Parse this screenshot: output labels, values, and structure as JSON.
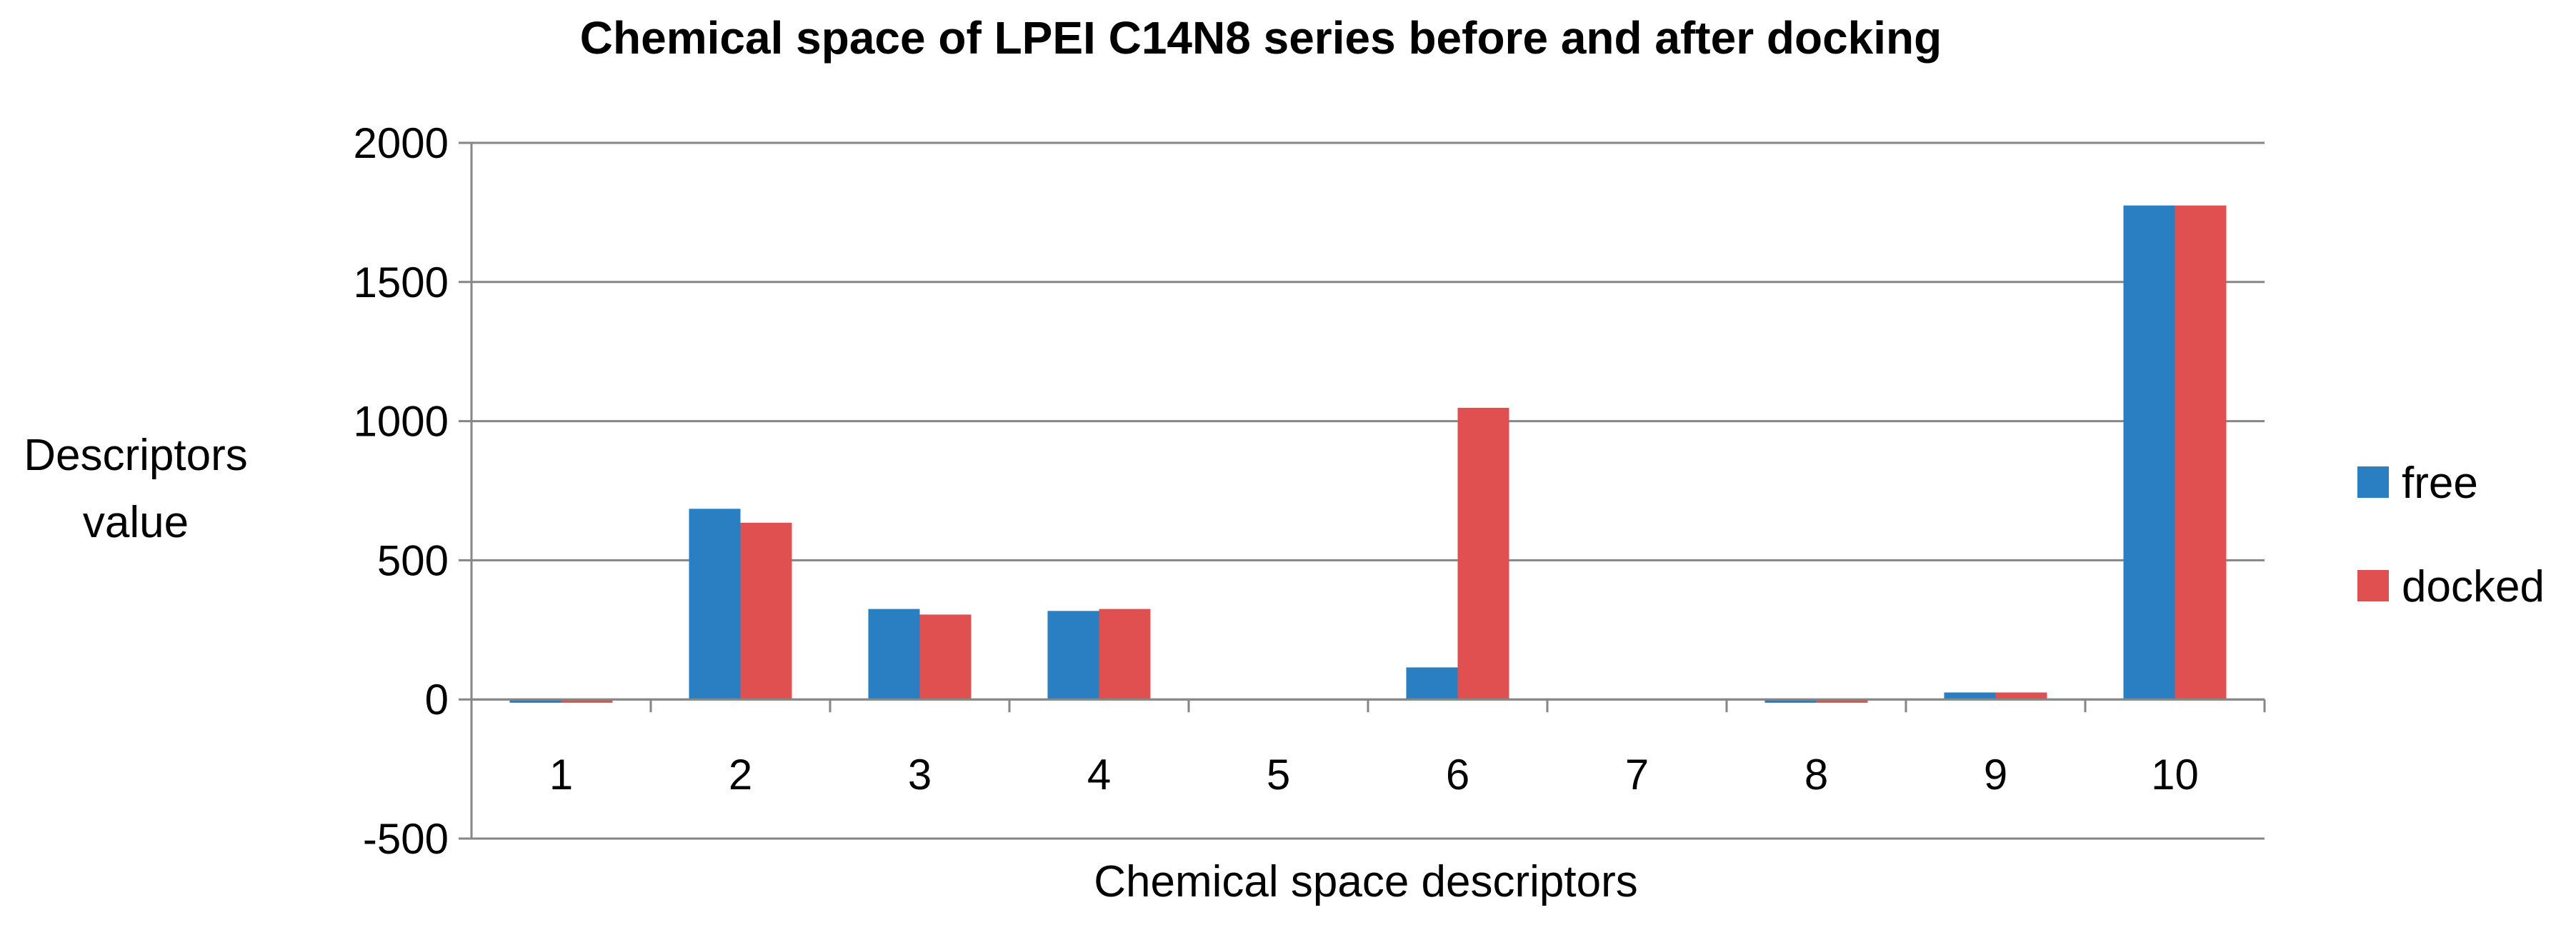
{
  "chart_data": {
    "type": "bar",
    "title": "Chemical space of LPEI C14N8 series before and after docking",
    "xlabel": "Chemical space descriptors",
    "ylabel_lines": [
      "Descriptors",
      "value"
    ],
    "categories": [
      "1",
      "2",
      "3",
      "4",
      "5",
      "6",
      "7",
      "8",
      "9",
      "10"
    ],
    "series": [
      {
        "name": "free",
        "color": "#2a7ec2",
        "values": [
          -12,
          685,
          325,
          318,
          0,
          115,
          0,
          -12,
          25,
          1775
        ]
      },
      {
        "name": "docked",
        "color": "#e05050",
        "values": [
          -12,
          635,
          305,
          325,
          0,
          1048,
          0,
          -12,
          25,
          1775
        ]
      }
    ],
    "ylim": [
      -500,
      2000
    ],
    "yticks": [
      -500,
      0,
      500,
      1000,
      1500,
      2000
    ],
    "grid": true,
    "legend_position": "right"
  }
}
